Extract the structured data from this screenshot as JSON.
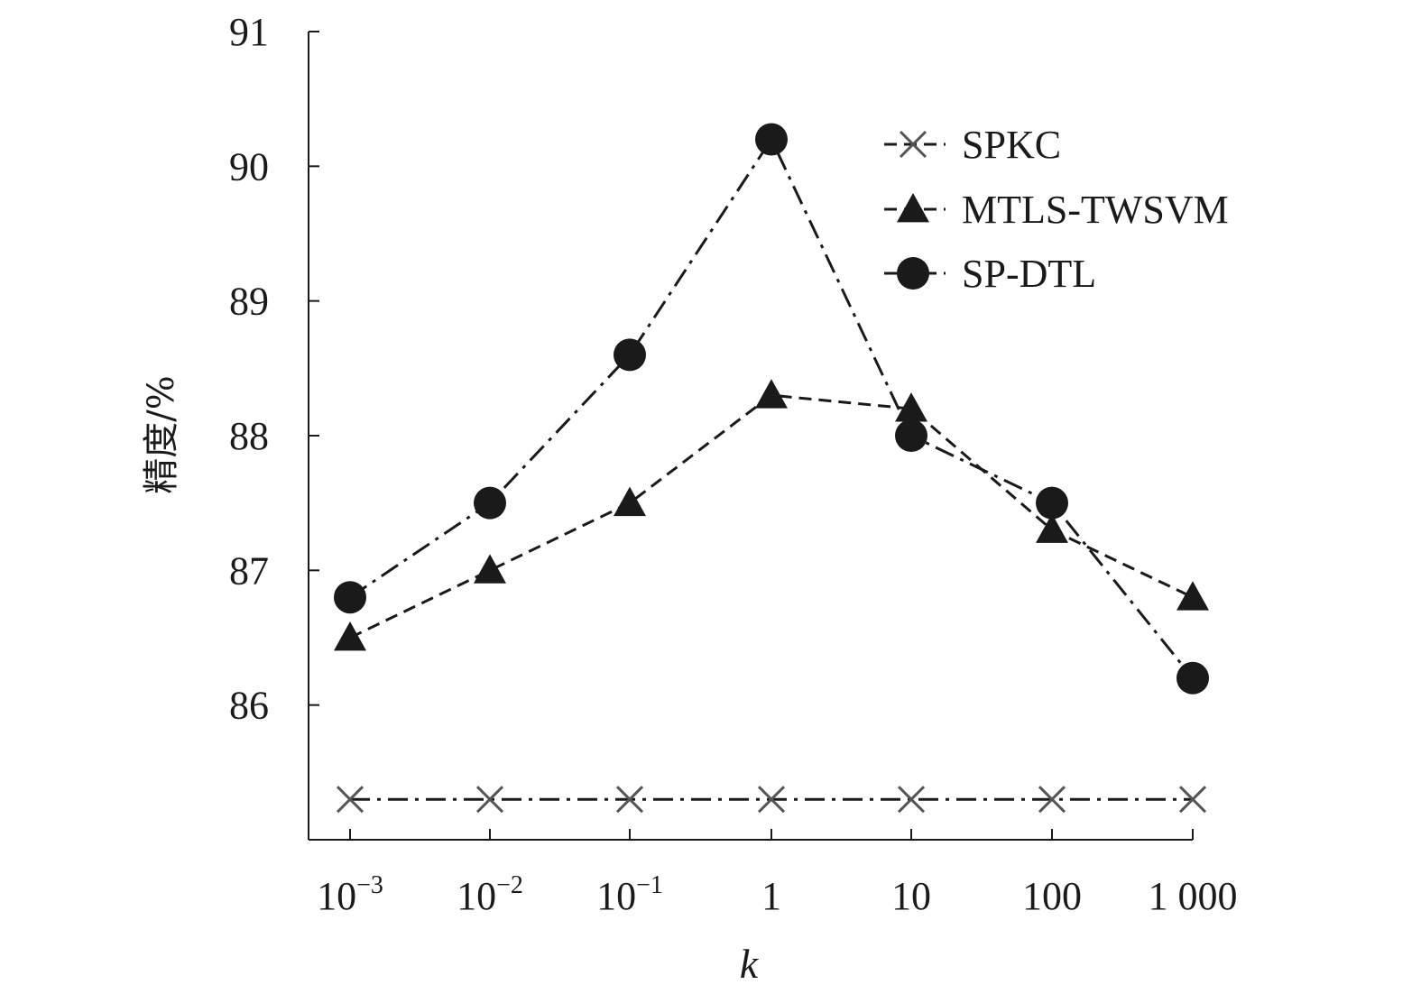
{
  "chart_data": {
    "type": "line",
    "xlabel": "k",
    "ylabel": "精度/%",
    "ylim": [
      85.0,
      91.0
    ],
    "y_ticks": [
      "86",
      "87",
      "88",
      "89",
      "90",
      "91"
    ],
    "categories": [
      "10^-3",
      "10^-2",
      "10^-1",
      "1",
      "10",
      "100",
      "1 000"
    ],
    "x_tick_labels": [
      {
        "base": "10",
        "exp": "−3"
      },
      {
        "base": "10",
        "exp": "−2"
      },
      {
        "base": "10",
        "exp": "−1"
      },
      {
        "base": "1",
        "exp": ""
      },
      {
        "base": "10",
        "exp": ""
      },
      {
        "base": "100",
        "exp": ""
      },
      {
        "base": "1 000",
        "exp": ""
      }
    ],
    "legend_position": "top-right",
    "grid": false,
    "series": [
      {
        "name": "SPKC",
        "marker": "x",
        "line_style": "dash-dot",
        "values": [
          85.3,
          85.3,
          85.3,
          85.3,
          85.3,
          85.3,
          85.3
        ]
      },
      {
        "name": "MTLS-TWSVM",
        "marker": "triangle",
        "line_style": "dashed",
        "values": [
          86.5,
          87.0,
          87.5,
          88.3,
          88.2,
          87.3,
          86.8
        ]
      },
      {
        "name": "SP-DTL",
        "marker": "circle",
        "line_style": "dash-dot",
        "values": [
          86.8,
          87.5,
          88.6,
          90.2,
          88.0,
          87.5,
          86.2
        ]
      }
    ],
    "colors": {
      "line": "#1a1a1a",
      "x_marker": "#555555"
    }
  }
}
